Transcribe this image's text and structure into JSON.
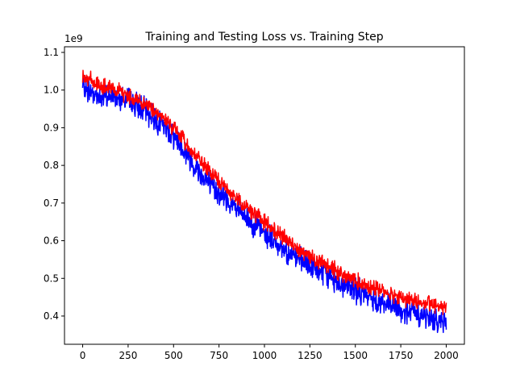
{
  "chart_data": {
    "type": "line",
    "title": "Training and Testing Loss vs. Training Step",
    "xlabel": "",
    "ylabel": "",
    "y_multiplier_label": "1e9",
    "xlim": [
      -100,
      2100
    ],
    "ylim": [
      325000000,
      1115000000
    ],
    "x_ticks": [
      {
        "value": 0,
        "label": "0"
      },
      {
        "value": 250,
        "label": "250"
      },
      {
        "value": 500,
        "label": "500"
      },
      {
        "value": 750,
        "label": "750"
      },
      {
        "value": 1000,
        "label": "1000"
      },
      {
        "value": 1250,
        "label": "1250"
      },
      {
        "value": 1500,
        "label": "1500"
      },
      {
        "value": 1750,
        "label": "1750"
      },
      {
        "value": 2000,
        "label": "2000"
      }
    ],
    "y_ticks": [
      {
        "value": 400000000,
        "label": "0.4"
      },
      {
        "value": 500000000,
        "label": "0.5"
      },
      {
        "value": 600000000,
        "label": "0.6"
      },
      {
        "value": 700000000,
        "label": "0.7"
      },
      {
        "value": 800000000,
        "label": "0.8"
      },
      {
        "value": 900000000,
        "label": "0.9"
      },
      {
        "value": 1000000000,
        "label": "1.0"
      },
      {
        "value": 1100000000,
        "label": "1.1"
      }
    ],
    "grid": false,
    "legend": "none",
    "series": [
      {
        "color": "#0000ff",
        "noise": 25000000,
        "x": [
          0,
          100,
          200,
          300,
          400,
          500,
          600,
          700,
          800,
          900,
          1000,
          1100,
          1200,
          1300,
          1400,
          1500,
          1600,
          1700,
          1800,
          1900,
          2000
        ],
        "y": [
          1010000000,
          980000000,
          985000000,
          960000000,
          925000000,
          880000000,
          810000000,
          750000000,
          705000000,
          660000000,
          620000000,
          580000000,
          545000000,
          520000000,
          490000000,
          470000000,
          445000000,
          425000000,
          410000000,
          395000000,
          385000000
        ]
      },
      {
        "color": "#ff0000",
        "noise": 16000000,
        "x": [
          0,
          100,
          200,
          300,
          400,
          500,
          600,
          700,
          800,
          900,
          1000,
          1100,
          1200,
          1300,
          1400,
          1500,
          1600,
          1700,
          1800,
          1900,
          2000
        ],
        "y": [
          1040000000,
          1010000000,
          995000000,
          975000000,
          945000000,
          900000000,
          840000000,
          780000000,
          735000000,
          690000000,
          650000000,
          610000000,
          575000000,
          545000000,
          520000000,
          495000000,
          475000000,
          458000000,
          442000000,
          432000000,
          425000000
        ]
      }
    ]
  }
}
